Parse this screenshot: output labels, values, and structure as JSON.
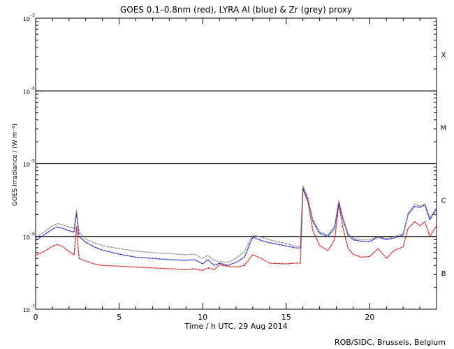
{
  "chart_data": {
    "type": "line",
    "title": "GOES 0.1–0.8nm (red), LYRA Al (blue) & Zr (grey) proxy",
    "xlabel": "Time / h UTC, 29 Aug 2014",
    "ylabel": "GOES Irradiance / (W m⁻²)",
    "xlim": [
      0,
      24
    ],
    "ylim": [
      1e-07,
      0.001
    ],
    "yscale": "log",
    "x_ticks": [
      {
        "v": 0,
        "label": "0"
      },
      {
        "v": 5,
        "label": "5"
      },
      {
        "v": 10,
        "label": "10"
      },
      {
        "v": 15,
        "label": "15"
      },
      {
        "v": 20,
        "label": "20"
      }
    ],
    "y_ticks": [
      {
        "exp": -7,
        "label": "10",
        "sup": "-7"
      },
      {
        "exp": -6,
        "label": "10",
        "sup": "-6"
      },
      {
        "exp": -5,
        "label": "10",
        "sup": "-5"
      },
      {
        "exp": -4,
        "label": "10",
        "sup": "-4"
      },
      {
        "exp": -3,
        "label": "10",
        "sup": "-3"
      }
    ],
    "threshold_lines": [
      1e-06,
      1e-05,
      0.0001
    ],
    "flare_classes": [
      {
        "label": "X",
        "exp": -3.5
      },
      {
        "label": "M",
        "exp": -4.5
      },
      {
        "label": "C",
        "exp": -5.5
      },
      {
        "label": "B",
        "exp": -6.5
      }
    ],
    "x": [
      0,
      0.5,
      1,
      1.3,
      1.6,
      2,
      2.3,
      2.45,
      2.6,
      3,
      3.5,
      4,
      5,
      6,
      7,
      8,
      9,
      9.5,
      10,
      10.3,
      10.7,
      11,
      11.5,
      12,
      12.5,
      13,
      13.5,
      14,
      15,
      15.5,
      15.85,
      16,
      16.3,
      16.6,
      17,
      17.5,
      17.9,
      18.15,
      18.4,
      18.7,
      19,
      19.5,
      20,
      20.5,
      21,
      21.5,
      22,
      22.3,
      22.7,
      23,
      23.3,
      23.6,
      24
    ],
    "series": [
      {
        "name": "GOES 0.1–0.8nm",
        "color": "#dd0000",
        "values": [
          5.5e-07,
          6.2e-07,
          7.3e-07,
          7.8e-07,
          7.3e-07,
          6.2e-07,
          5.6e-07,
          1.35e-06,
          5e-07,
          4.6e-07,
          4.2e-07,
          4e-07,
          3.9e-07,
          3.8e-07,
          3.7e-07,
          3.6e-07,
          3.5e-07,
          3.6e-07,
          3.4e-07,
          3.7e-07,
          3.5e-07,
          4.1e-07,
          3.9e-07,
          3.8e-07,
          4e-07,
          5.6e-07,
          5e-07,
          4.3e-07,
          4.2e-07,
          4.3e-07,
          4.3e-07,
          4.5e-06,
          3e-06,
          1.2e-06,
          7.5e-07,
          6.4e-07,
          9e-07,
          2.8e-06,
          1.3e-06,
          7e-07,
          5.7e-07,
          5.2e-07,
          5.3e-07,
          6.8e-07,
          5e-07,
          6.5e-07,
          7.2e-07,
          1.3e-06,
          1.6e-06,
          1.4e-06,
          1.6e-06,
          1e-06,
          1.4e-06
        ]
      },
      {
        "name": "LYRA Al",
        "color": "#0000cc",
        "values": [
          8.8e-07,
          1.05e-06,
          1.25e-06,
          1.35e-06,
          1.3e-06,
          1.2e-06,
          1.15e-06,
          2.1e-06,
          1e-06,
          8.3e-07,
          7.2e-07,
          6.5e-07,
          5.7e-07,
          5.2e-07,
          5e-07,
          4.8e-07,
          4.7e-07,
          4.8e-07,
          4.2e-07,
          4.8e-07,
          4e-07,
          4.3e-07,
          4e-07,
          4.4e-07,
          5.2e-07,
          9.8e-07,
          8.8e-07,
          8.2e-07,
          7.4e-07,
          7e-07,
          6.9e-07,
          4.7e-06,
          3.2e-06,
          1.6e-06,
          1.1e-06,
          1e-06,
          1.3e-06,
          2.9e-06,
          1.7e-06,
          1.05e-06,
          9e-07,
          8.6e-07,
          8.5e-07,
          9.8e-07,
          9e-07,
          9.6e-07,
          1.05e-06,
          2e-06,
          2.6e-06,
          2.5e-06,
          2.7e-06,
          1.7e-06,
          2.4e-06
        ]
      },
      {
        "name": "Zr",
        "color": "#808080",
        "values": [
          9.5e-07,
          1.15e-06,
          1.4e-06,
          1.5e-06,
          1.45e-06,
          1.35e-06,
          1.3e-06,
          2.3e-06,
          1.15e-06,
          9.2e-07,
          8.2e-07,
          7.5e-07,
          6.8e-07,
          6.3e-07,
          6e-07,
          5.8e-07,
          5.6e-07,
          5.7e-07,
          5e-07,
          5.5e-07,
          4.7e-07,
          4.5e-07,
          4.4e-07,
          5e-07,
          6.2e-07,
          1.05e-06,
          9.8e-07,
          9e-07,
          8e-07,
          7.4e-07,
          7.2e-07,
          5e-06,
          3.4e-06,
          1.7e-06,
          1.15e-06,
          1.05e-06,
          1.4e-06,
          3.1e-06,
          1.8e-06,
          1.1e-06,
          9.5e-07,
          9e-07,
          9e-07,
          1e-06,
          9.4e-07,
          1e-06,
          1.1e-06,
          2.1e-06,
          2.8e-06,
          2.6e-06,
          2.8e-06,
          1.8e-06,
          2.5e-06
        ]
      }
    ]
  },
  "credit": "ROB/SIDC, Brussels, Belgium"
}
